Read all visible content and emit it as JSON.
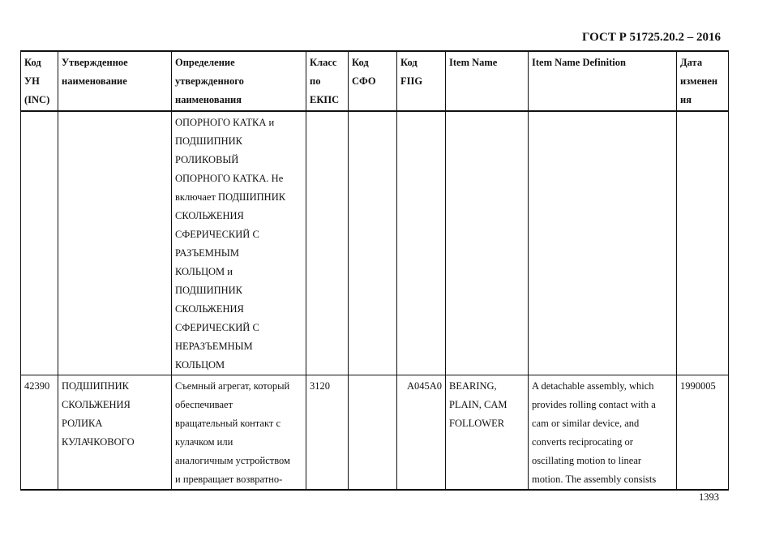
{
  "header": {
    "standard": "ГОСТ Р 51725.20.2 – 2016"
  },
  "table": {
    "columns": [
      "Код\nУН\n(INC)",
      "Утвержденное\nнаименование",
      "Определение\nутвержденного\nнаименования",
      "Класс\nпо\nЕКПС",
      "Код\nСФО",
      "Код\nFIIG",
      "Item Name",
      "Item Name Definition",
      "Дата\nизменен\nия"
    ],
    "continuation": {
      "definition": "ОПОРНОГО КАТКА и\nПОДШИПНИК\nРОЛИКОВЫЙ\nОПОРНОГО КАТКА. Не\nвключает ПОДШИПНИК\nСКОЛЬЖЕНИЯ\nСФЕРИЧЕСКИЙ С\nРАЗЪЕМНЫМ\nКОЛЬЦОМ и\nПОДШИПНИК\nСКОЛЬЖЕНИЯ\nСФЕРИЧЕСКИЙ С\nНЕРАЗЪЕМНЫМ\nКОЛЬЦОМ"
    },
    "rows": [
      {
        "inc": "42390",
        "name": "ПОДШИПНИК\nСКОЛЬЖЕНИЯ\nРОЛИКА\nКУЛАЧКОВОГО",
        "definition": "Съемный агрегат, который\nобеспечивает\nвращательный контакт с\nкулачком или\nаналогичным устройством\nи превращает возвратно-",
        "class": "3120",
        "sfo": "",
        "fiig": "A045A0",
        "item_name": "BEARING,\nPLAIN, CAM\nFOLLOWER",
        "item_definition": "A detachable assembly, which\nprovides rolling contact with a\ncam or similar device, and\nconverts reciprocating or\noscillating motion to linear\nmotion. The assembly consists",
        "date": "1990005"
      }
    ]
  },
  "footer": {
    "page_number": "1393"
  }
}
